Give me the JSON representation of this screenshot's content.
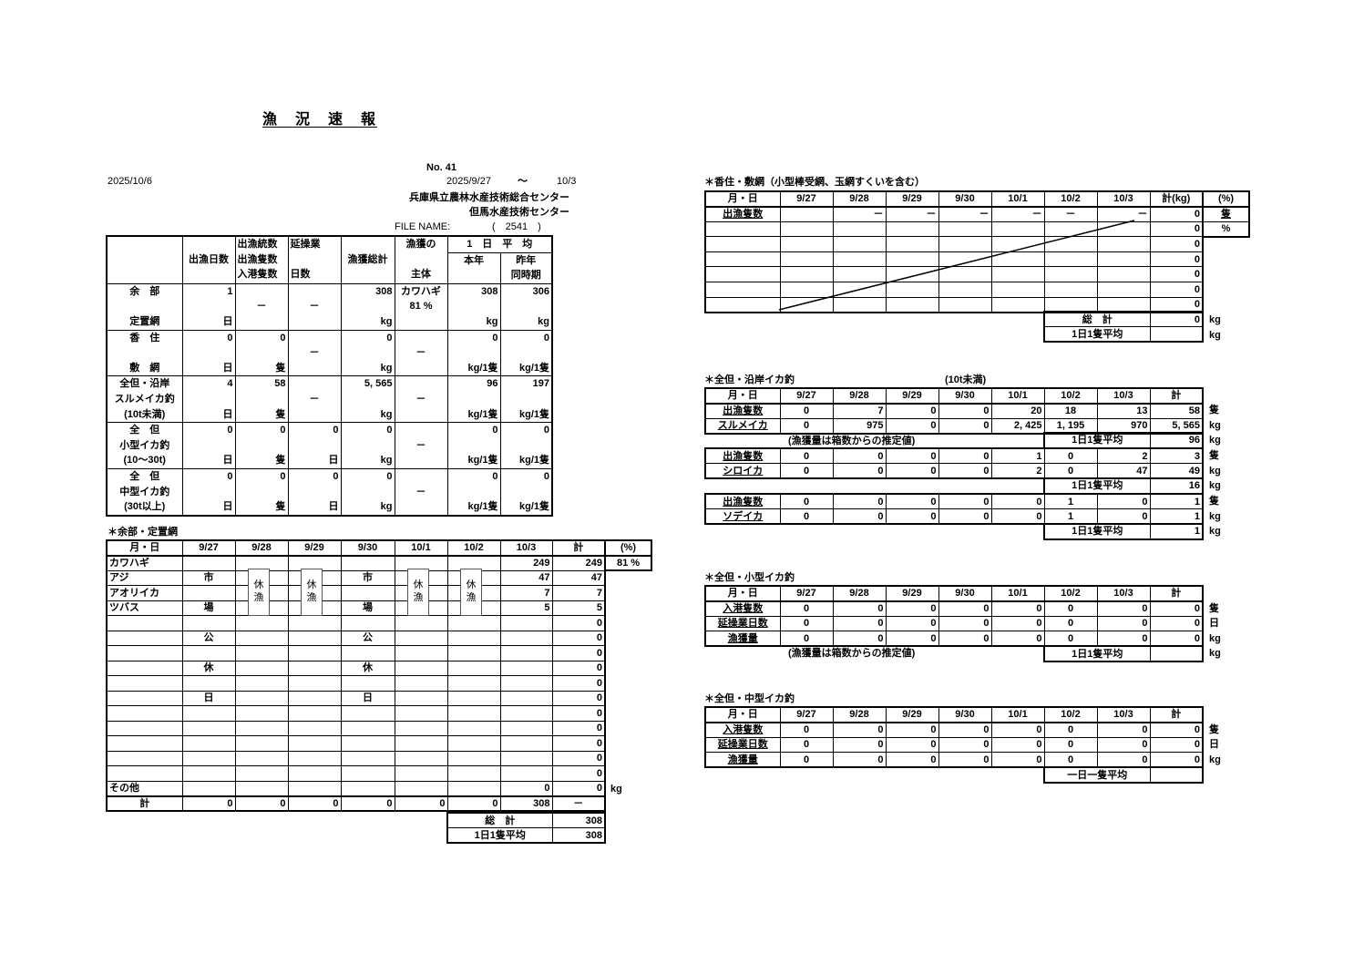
{
  "report": {
    "title": "漁　況　速　報",
    "number": "No. 41",
    "issue_date": "2025/10/6",
    "period_start": "2025/9/27",
    "period_sep": "～",
    "period_end": "10/3",
    "org1": "兵庫県立農林水産技術総合センター",
    "org2": "但馬水産技術センター",
    "file_label": "FILE NAME:",
    "file_value": "(　2541　)"
  },
  "dates": [
    "9/27",
    "9/28",
    "9/29",
    "9/30",
    "10/1",
    "10/2",
    "10/3"
  ],
  "main_table": {
    "header": {
      "days": [
        "",
        "出漁日数",
        ""
      ],
      "boats": [
        "出漁統数",
        "出漁隻数",
        "入港隻数"
      ],
      "ops": [
        "延操業",
        "",
        "日数"
      ],
      "catch": [
        "",
        "漁獲総計",
        ""
      ],
      "main_species": [
        "漁獲の",
        "",
        "主体"
      ],
      "daily_avg": "1　日　平　均",
      "this_year": "本年",
      "last_year": [
        "昨年",
        "同時期"
      ]
    },
    "sections": [
      {
        "label": [
          "余　部",
          "",
          "定置網"
        ],
        "cells": [
          [
            "1",
            "",
            "日"
          ],
          [
            "",
            "－",
            ""
          ],
          [
            "",
            "－",
            ""
          ],
          [
            "308",
            "",
            "kg"
          ],
          [
            "カワハギ",
            "81 %",
            ""
          ],
          [
            "308",
            "",
            "kg"
          ],
          [
            "306",
            "",
            "kg"
          ]
        ]
      },
      {
        "label": [
          "香　住",
          "",
          "敷　網"
        ],
        "cells": [
          [
            "0",
            "",
            "日"
          ],
          [
            "0",
            "",
            "隻"
          ],
          [
            "",
            "－",
            ""
          ],
          [
            "0",
            "",
            "kg"
          ],
          [
            "",
            "－",
            ""
          ],
          [
            "0",
            "",
            "kg/1隻"
          ],
          [
            "0",
            "",
            "kg/1隻"
          ]
        ]
      },
      {
        "label": [
          "全但・沿岸",
          "スルメイカ釣",
          "(10t未満)"
        ],
        "cells": [
          [
            "4",
            "",
            "日"
          ],
          [
            "58",
            "",
            "隻"
          ],
          [
            "",
            "－",
            ""
          ],
          [
            "5, 565",
            "",
            "kg"
          ],
          [
            "",
            "－",
            ""
          ],
          [
            "96",
            "",
            "kg/1隻"
          ],
          [
            "197",
            "",
            "kg/1隻"
          ]
        ]
      },
      {
        "label": [
          "全　但",
          "小型イカ釣",
          "(10～30t)"
        ],
        "cells": [
          [
            "0",
            "",
            "日"
          ],
          [
            "0",
            "",
            "隻"
          ],
          [
            "0",
            "",
            "日"
          ],
          [
            "0",
            "",
            "kg"
          ],
          [
            "",
            "－",
            ""
          ],
          [
            "0",
            "",
            "kg/1隻"
          ],
          [
            "0",
            "",
            "kg/1隻"
          ]
        ]
      },
      {
        "label": [
          "全　但",
          "中型イカ釣",
          "(30t以上)"
        ],
        "cells": [
          [
            "0",
            "",
            "日"
          ],
          [
            "0",
            "",
            "隻"
          ],
          [
            "0",
            "",
            "日"
          ],
          [
            "0",
            "",
            "kg"
          ],
          [
            "",
            "－",
            ""
          ],
          [
            "0",
            "",
            "kg/1隻"
          ],
          [
            "0",
            "",
            "kg/1隻"
          ]
        ]
      }
    ]
  },
  "amarube": {
    "title": "＊余部・定置網",
    "header_label": "月・日",
    "total_label": "計",
    "pct_label": "(%)",
    "pct_value": "81 %",
    "rows": [
      {
        "name": "カワハギ",
        "values": [
          "",
          "",
          "",
          "",
          "",
          "",
          "249"
        ],
        "total": "249"
      },
      {
        "name": "アジ",
        "values": [
          "市",
          "",
          "",
          "市",
          "",
          "",
          "47"
        ],
        "total": "47"
      },
      {
        "name": "アオリイカ",
        "values": [
          "",
          "",
          "",
          "",
          "",
          "",
          "7"
        ],
        "total": "7"
      },
      {
        "name": "ツバス",
        "values": [
          "場",
          "",
          "",
          "場",
          "",
          "",
          "5"
        ],
        "total": "5"
      },
      {
        "name": "",
        "values": [
          "",
          "",
          "",
          "",
          "",
          "",
          ""
        ],
        "total": "0"
      },
      {
        "name": "",
        "values": [
          "公",
          "",
          "",
          "公",
          "",
          "",
          ""
        ],
        "total": "0"
      },
      {
        "name": "",
        "values": [
          "",
          "",
          "",
          "",
          "",
          "",
          ""
        ],
        "total": "0"
      },
      {
        "name": "",
        "values": [
          "休",
          "",
          "",
          "休",
          "",
          "",
          ""
        ],
        "total": "0"
      },
      {
        "name": "",
        "values": [
          "",
          "",
          "",
          "",
          "",
          "",
          ""
        ],
        "total": "0"
      },
      {
        "name": "",
        "values": [
          "日",
          "",
          "",
          "日",
          "",
          "",
          ""
        ],
        "total": "0"
      },
      {
        "name": "",
        "values": [
          "",
          "",
          "",
          "",
          "",
          "",
          ""
        ],
        "total": "0"
      },
      {
        "name": "",
        "values": [
          "",
          "",
          "",
          "",
          "",
          "",
          ""
        ],
        "total": "0"
      },
      {
        "name": "",
        "values": [
          "",
          "",
          "",
          "",
          "",
          "",
          ""
        ],
        "total": "0"
      },
      {
        "name": "",
        "values": [
          "",
          "",
          "",
          "",
          "",
          "",
          ""
        ],
        "total": "0"
      },
      {
        "name": "",
        "values": [
          "",
          "",
          "",
          "",
          "",
          "",
          ""
        ],
        "total": "0"
      },
      {
        "name": "その他",
        "values": [
          "",
          "",
          "",
          "",
          "",
          "",
          "0"
        ],
        "total": "0"
      }
    ],
    "sum_row": {
      "name": "計",
      "values": [
        "0",
        "0",
        "0",
        "0",
        "0",
        "0",
        "308"
      ],
      "total": "－"
    },
    "other_unit": "kg",
    "closed_label": "休\n漁",
    "closed_dates": [
      "9/28",
      "9/29",
      "10/1",
      "10/2"
    ],
    "summary": [
      {
        "label": "総　計",
        "value": "308"
      },
      {
        "label": "1日1隻平均",
        "value": "308"
      }
    ]
  },
  "kasumi": {
    "title": "＊香住・敷網（小型棒受網、玉網すくいを含む）",
    "header_label": "月・日",
    "total_label": "計(kg)",
    "pct_label": "(%)",
    "boats_row": {
      "label": "出漁隻数",
      "values": [
        "",
        "－",
        "－",
        "－",
        "－",
        "－",
        "－"
      ],
      "total": "0",
      "unit": "隻"
    },
    "empty_totals": [
      "0",
      "0",
      "0",
      "0",
      "0",
      "0"
    ],
    "pct_unit": "%",
    "summary": [
      {
        "label": "総　計",
        "value": "0",
        "unit": "kg"
      },
      {
        "label": "1日1隻平均",
        "value": "",
        "unit": "kg"
      }
    ]
  },
  "coastal": {
    "title": "＊全但・沿岸イカ釣",
    "size_note": "(10t未満)",
    "header_label": "月・日",
    "total_label": "計",
    "note": "(漁獲量は箱数からの推定値)",
    "blocks": [
      {
        "rows": [
          {
            "label": "出漁隻数",
            "values": [
              "0",
              "7",
              "0",
              "0",
              "20",
              "18",
              "13"
            ],
            "total": "58",
            "unit": "隻"
          },
          {
            "label": "スルメイカ",
            "values": [
              "0",
              "975",
              "0",
              "0",
              "2, 425",
              "1, 195",
              "970"
            ],
            "total": "5, 565",
            "unit": "kg"
          }
        ],
        "avg": {
          "label": "1日1隻平均",
          "value": "96",
          "unit": "kg"
        }
      },
      {
        "rows": [
          {
            "label": "出漁隻数",
            "values": [
              "0",
              "0",
              "0",
              "0",
              "1",
              "0",
              "2"
            ],
            "total": "3",
            "unit": "隻"
          },
          {
            "label": "シロイカ",
            "values": [
              "0",
              "0",
              "0",
              "0",
              "2",
              "0",
              "47"
            ],
            "total": "49",
            "unit": "kg"
          }
        ],
        "avg": {
          "label": "1日1隻平均",
          "value": "16",
          "unit": "kg"
        }
      },
      {
        "rows": [
          {
            "label": "出漁隻数",
            "values": [
              "0",
              "0",
              "0",
              "0",
              "0",
              "1",
              "0"
            ],
            "total": "1",
            "unit": "隻"
          },
          {
            "label": "ソデイカ",
            "values": [
              "0",
              "0",
              "0",
              "0",
              "0",
              "1",
              "0"
            ],
            "total": "1",
            "unit": "kg"
          }
        ],
        "avg": {
          "label": "1日1隻平均",
          "value": "1",
          "unit": "kg"
        }
      }
    ]
  },
  "small": {
    "title": "＊全但・小型イカ釣",
    "header_label": "月・日",
    "total_label": "計",
    "note": "(漁獲量は箱数からの推定値)",
    "rows": [
      {
        "label": "入港隻数",
        "values": [
          "0",
          "0",
          "0",
          "0",
          "0",
          "0",
          "0"
        ],
        "total": "0",
        "unit": "隻"
      },
      {
        "label": "延操業日数",
        "values": [
          "0",
          "0",
          "0",
          "0",
          "0",
          "0",
          "0"
        ],
        "total": "0",
        "unit": "日"
      },
      {
        "label": "漁獲量",
        "values": [
          "0",
          "0",
          "0",
          "0",
          "0",
          "0",
          "0"
        ],
        "total": "0",
        "unit": "kg"
      }
    ],
    "avg": {
      "label": "1日1隻平均",
      "value": "",
      "unit": "kg"
    }
  },
  "medium": {
    "title": "＊全但・中型イカ釣",
    "header_label": "月・日",
    "total_label": "計",
    "rows": [
      {
        "label": "入港隻数",
        "values": [
          "0",
          "0",
          "0",
          "0",
          "0",
          "0",
          "0"
        ],
        "total": "0",
        "unit": "隻"
      },
      {
        "label": "延操業日数",
        "values": [
          "0",
          "0",
          "0",
          "0",
          "0",
          "0",
          "0"
        ],
        "total": "0",
        "unit": "日"
      },
      {
        "label": "漁獲量",
        "values": [
          "0",
          "0",
          "0",
          "0",
          "0",
          "0",
          "0"
        ],
        "total": "0",
        "unit": "kg"
      }
    ],
    "avg": {
      "label": "一日一隻平均",
      "value": ""
    }
  }
}
